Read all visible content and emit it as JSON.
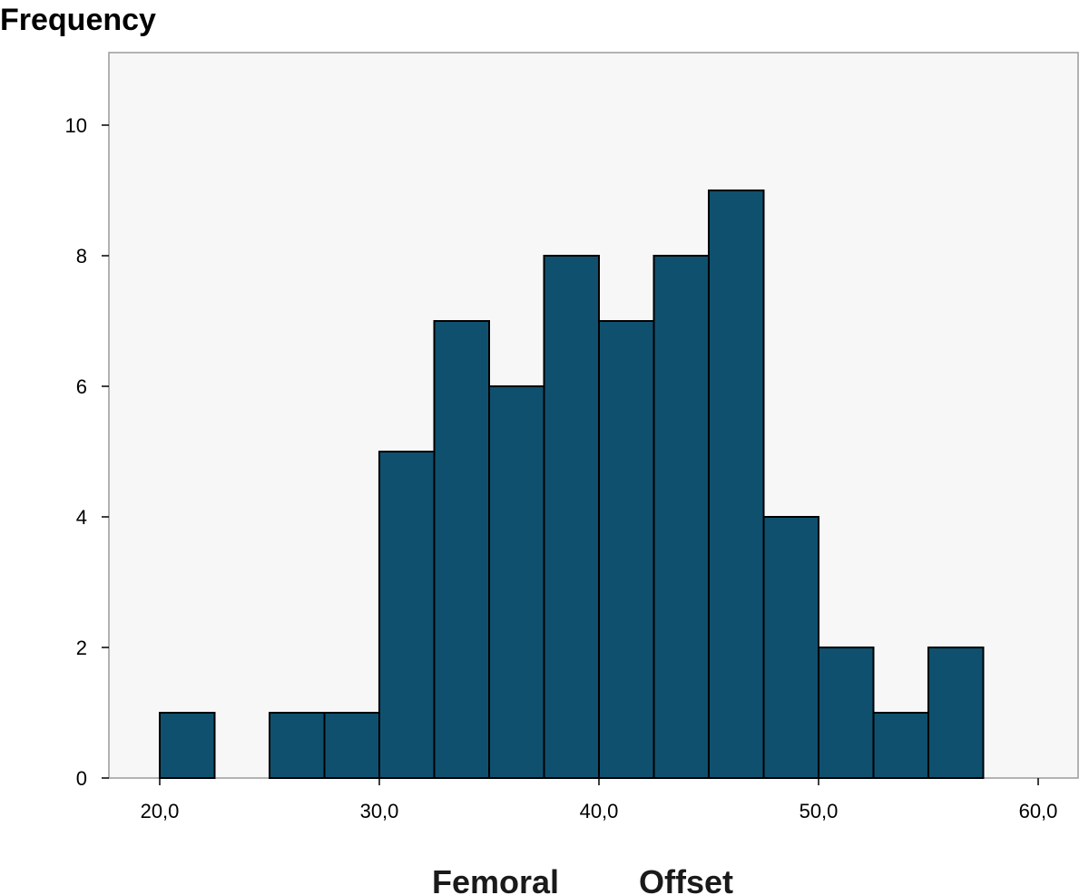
{
  "chart_data": {
    "type": "bar",
    "subtype": "histogram",
    "ylabel": "Frequency",
    "xlabel_words": [
      "Femoral",
      "Offset"
    ],
    "bin_width": 2.5,
    "bins": [
      {
        "start": 20.0,
        "count": 1
      },
      {
        "start": 25.0,
        "count": 1
      },
      {
        "start": 27.5,
        "count": 1
      },
      {
        "start": 30.0,
        "count": 5
      },
      {
        "start": 32.5,
        "count": 7
      },
      {
        "start": 35.0,
        "count": 6
      },
      {
        "start": 37.5,
        "count": 8
      },
      {
        "start": 40.0,
        "count": 7
      },
      {
        "start": 42.5,
        "count": 8
      },
      {
        "start": 45.0,
        "count": 9
      },
      {
        "start": 47.5,
        "count": 4
      },
      {
        "start": 50.0,
        "count": 2
      },
      {
        "start": 52.5,
        "count": 1
      },
      {
        "start": 55.0,
        "count": 2
      }
    ],
    "xlim": [
      17.5,
      61.5
    ],
    "ylim": [
      0,
      11
    ],
    "x_ticks": [
      20,
      30,
      40,
      50,
      60
    ],
    "x_tick_labels": [
      "20,0",
      "30,0",
      "40,0",
      "50,0",
      "60,0"
    ],
    "y_ticks": [
      0,
      2,
      4,
      6,
      8,
      10
    ],
    "y_tick_labels": [
      "0",
      "2",
      "4",
      "6",
      "8",
      "10"
    ],
    "grid": false,
    "colors": {
      "bar": "#0f506f",
      "plot_background": "#f7f7f7",
      "axis": "#000000"
    }
  }
}
